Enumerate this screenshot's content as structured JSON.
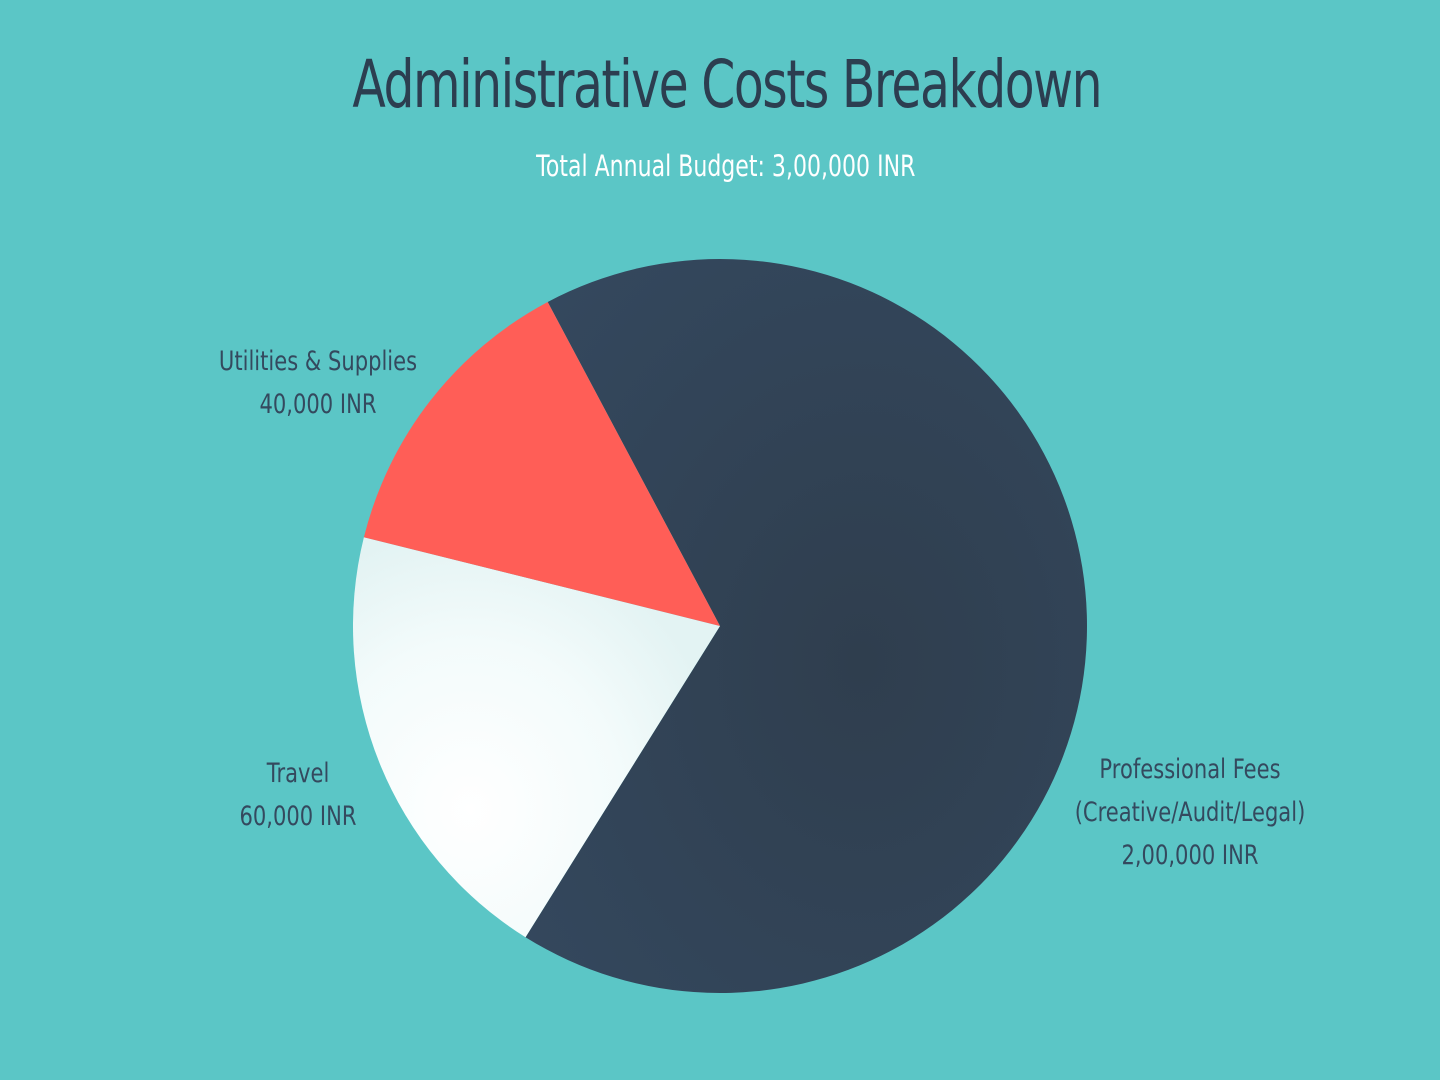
{
  "chart_data": {
    "type": "pie",
    "title": "Administrative Costs Breakdown",
    "subtitle": "Total Annual Budget: 3,00,000 INR",
    "slices": [
      {
        "name": "Professional Fees",
        "name_line2": "(Creative/Audit/Legal)",
        "value": 200000,
        "value_label": "2,00,000 INR",
        "color": "#34495e"
      },
      {
        "name": "Travel",
        "value": 60000,
        "value_label": "60,000 INR",
        "color": "#f4fbfb"
      },
      {
        "name": "Utilities & Supplies",
        "value": 40000,
        "value_label": "40,000 INR",
        "color": "#ff5e57"
      }
    ]
  },
  "colors": {
    "background": "#5bc6c6",
    "title": "#2c3e50",
    "subtitle": "#ffffff",
    "labels": "#34495e"
  }
}
